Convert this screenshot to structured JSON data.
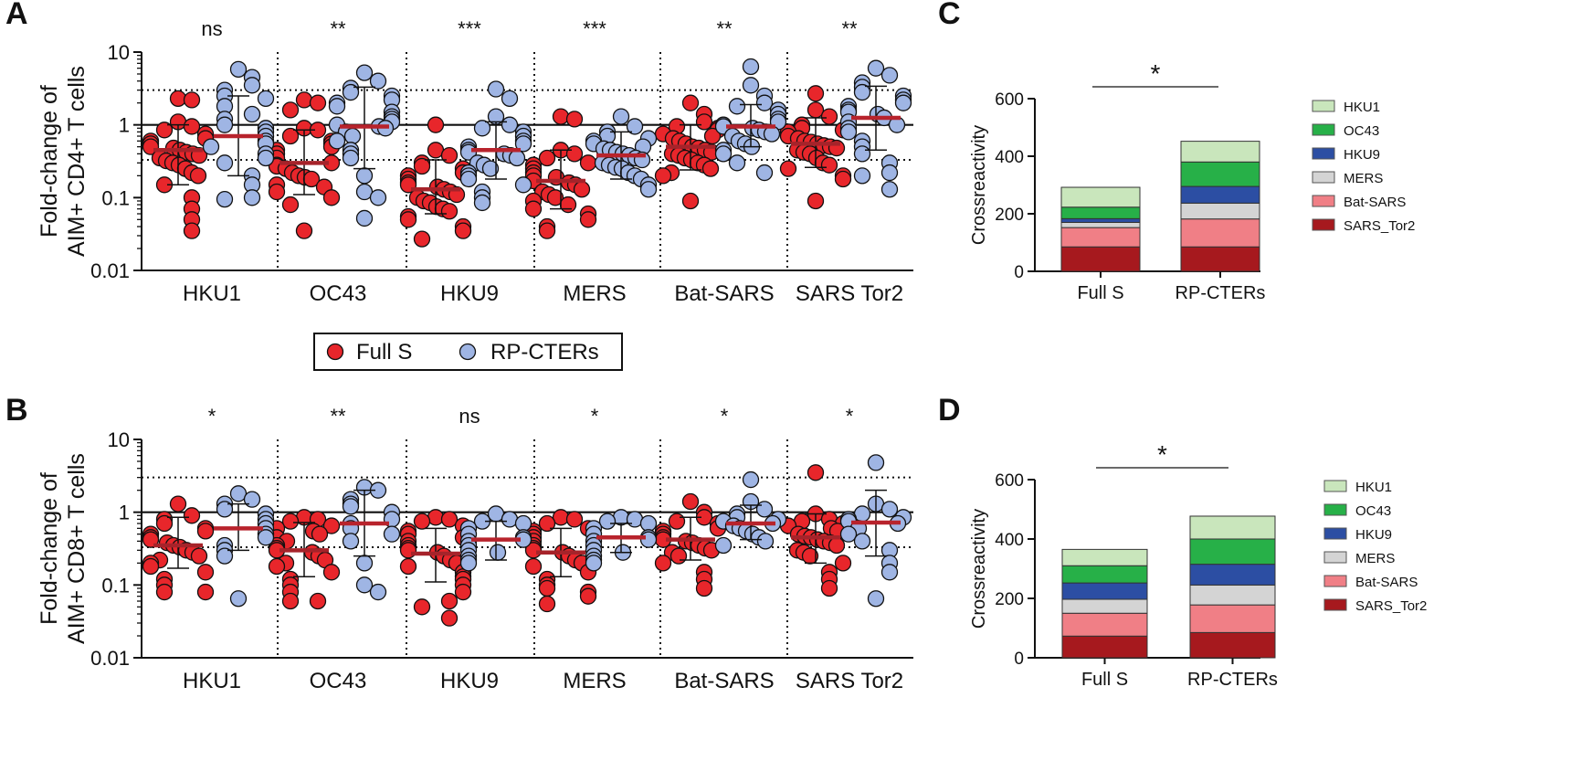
{
  "colors": {
    "full_s": "#e8262b",
    "rp_cters": "#9fb5e4",
    "median_full": "#a6232a",
    "median_rp": "#b8232c",
    "HKU1": "#c9e6bc",
    "OC43": "#27b048",
    "HKU9": "#2c4ea3",
    "MERS": "#d4d4d4",
    "Bat-SARS": "#f07f86",
    "SARS_Tor2": "#a6191e"
  },
  "legend": {
    "full_s": "Full S",
    "rp_cters": "RP-CTERs"
  },
  "chart_data": [
    {
      "panel": "A",
      "type": "scatter",
      "yscale": "log",
      "ylabel_line1": "Fold-change of",
      "ylabel_line2": "AIM+ CD4+ T cells",
      "ylim": [
        0.01,
        10
      ],
      "yticks": [
        "0.01",
        "0.1",
        "1",
        "10"
      ],
      "reference_lines": [
        0.33,
        1,
        3
      ],
      "categories": [
        "HKU1",
        "OC43",
        "HKU9",
        "MERS",
        "Bat-SARS",
        "SARS Tor2"
      ],
      "significance": [
        "ns",
        "**",
        "***",
        "***",
        "**",
        "**"
      ],
      "series": [
        {
          "name": "Full S",
          "medians": [
            0.45,
            0.3,
            0.13,
            0.17,
            0.5,
            0.55
          ],
          "sd_low": [
            0.15,
            0.11,
            0.06,
            0.07,
            0.24,
            0.26
          ],
          "sd_high": [
            1.0,
            0.85,
            0.33,
            0.45,
            1.0,
            1.25
          ],
          "values": [
            [
              2.3,
              2.2,
              1.1,
              0.95,
              0.85,
              0.75,
              0.65,
              0.6,
              0.55,
              0.5,
              0.48,
              0.45,
              0.42,
              0.4,
              0.38,
              0.35,
              0.32,
              0.3,
              0.28,
              0.25,
              0.22,
              0.2,
              0.15,
              0.1,
              0.07,
              0.05,
              0.035
            ],
            [
              2.2,
              2.0,
              1.6,
              0.9,
              0.85,
              0.7,
              0.6,
              0.55,
              0.5,
              0.45,
              0.4,
              0.35,
              0.3,
              0.28,
              0.27,
              0.25,
              0.22,
              0.2,
              0.19,
              0.18,
              0.15,
              0.14,
              0.12,
              0.1,
              0.08,
              0.035
            ],
            [
              1.0,
              0.45,
              0.38,
              0.3,
              0.27,
              0.25,
              0.22,
              0.2,
              0.18,
              0.16,
              0.15,
              0.14,
              0.13,
              0.12,
              0.11,
              0.1,
              0.09,
              0.085,
              0.075,
              0.07,
              0.065,
              0.055,
              0.05,
              0.04,
              0.035,
              0.027
            ],
            [
              1.3,
              1.2,
              0.45,
              0.4,
              0.35,
              0.3,
              0.28,
              0.25,
              0.22,
              0.2,
              0.19,
              0.17,
              0.16,
              0.15,
              0.13,
              0.12,
              0.11,
              0.1,
              0.09,
              0.08,
              0.07,
              0.06,
              0.05,
              0.04,
              0.035
            ],
            [
              2.0,
              1.4,
              1.1,
              0.95,
              0.9,
              0.85,
              0.75,
              0.7,
              0.65,
              0.6,
              0.55,
              0.5,
              0.48,
              0.45,
              0.42,
              0.4,
              0.38,
              0.35,
              0.33,
              0.3,
              0.28,
              0.25,
              0.22,
              0.2,
              0.09
            ],
            [
              2.7,
              1.6,
              1.3,
              1.0,
              0.9,
              0.85,
              0.8,
              0.7,
              0.65,
              0.6,
              0.58,
              0.55,
              0.52,
              0.5,
              0.48,
              0.45,
              0.42,
              0.4,
              0.35,
              0.3,
              0.28,
              0.25,
              0.2,
              0.18,
              0.09
            ]
          ]
        },
        {
          "name": "RP-CTERs",
          "medians": [
            0.7,
            0.95,
            0.45,
            0.38,
            0.95,
            1.25
          ],
          "sd_low": [
            0.2,
            0.25,
            0.18,
            0.18,
            0.5,
            0.45
          ],
          "sd_high": [
            2.5,
            3.3,
            1.1,
            0.8,
            1.9,
            3.4
          ],
          "values": [
            [
              5.8,
              4.5,
              3.5,
              3.0,
              2.5,
              2.3,
              1.8,
              1.4,
              1.2,
              1.0,
              0.9,
              0.8,
              0.7,
              0.6,
              0.55,
              0.5,
              0.4,
              0.35,
              0.3,
              0.2,
              0.15,
              0.1,
              0.095
            ],
            [
              5.2,
              4.0,
              3.2,
              2.8,
              2.5,
              2.2,
              2.0,
              1.8,
              1.5,
              1.3,
              1.2,
              1.1,
              1.0,
              0.95,
              0.9,
              0.8,
              0.7,
              0.6,
              0.45,
              0.4,
              0.35,
              0.2,
              0.12,
              0.1,
              0.052
            ],
            [
              3.1,
              2.3,
              1.3,
              1.0,
              0.9,
              0.8,
              0.7,
              0.6,
              0.55,
              0.5,
              0.45,
              0.42,
              0.4,
              0.38,
              0.35,
              0.3,
              0.28,
              0.25,
              0.22,
              0.2,
              0.18,
              0.15,
              0.12,
              0.1,
              0.085
            ],
            [
              1.3,
              0.95,
              0.8,
              0.7,
              0.65,
              0.6,
              0.55,
              0.5,
              0.47,
              0.45,
              0.42,
              0.4,
              0.38,
              0.35,
              0.33,
              0.3,
              0.28,
              0.26,
              0.25,
              0.22,
              0.2,
              0.18,
              0.15,
              0.13
            ],
            [
              6.3,
              3.5,
              2.5,
              2.0,
              1.8,
              1.6,
              1.4,
              1.2,
              1.1,
              1.0,
              0.95,
              0.9,
              0.85,
              0.8,
              0.75,
              0.7,
              0.6,
              0.55,
              0.5,
              0.45,
              0.4,
              0.3,
              0.22
            ],
            [
              6.0,
              4.8,
              3.8,
              3.3,
              2.8,
              2.5,
              2.2,
              2.0,
              1.8,
              1.6,
              1.5,
              1.4,
              1.25,
              1.1,
              1.0,
              0.9,
              0.8,
              0.6,
              0.5,
              0.4,
              0.3,
              0.22,
              0.2,
              0.13
            ]
          ]
        }
      ]
    },
    {
      "panel": "B",
      "type": "scatter",
      "yscale": "log",
      "ylabel_line1": "Fold-change of",
      "ylabel_line2": "AIM+ CD8+ T cells",
      "ylim": [
        0.01,
        10
      ],
      "yticks": [
        "0.01",
        "0.1",
        "1",
        "10"
      ],
      "reference_lines": [
        0.33,
        1,
        3
      ],
      "categories": [
        "HKU1",
        "OC43",
        "HKU9",
        "MERS",
        "Bat-SARS",
        "SARS Tor2"
      ],
      "significance": [
        "*",
        "**",
        "ns",
        "*",
        "*",
        "*"
      ],
      "series": [
        {
          "name": "Full S",
          "medians": [
            0.35,
            0.3,
            0.27,
            0.28,
            0.42,
            0.45
          ],
          "sd_low": [
            0.17,
            0.13,
            0.11,
            0.13,
            0.22,
            0.2
          ],
          "sd_high": [
            0.85,
            0.72,
            0.6,
            0.6,
            0.85,
            0.95
          ],
          "values": [
            [
              1.3,
              0.9,
              0.8,
              0.7,
              0.6,
              0.55,
              0.5,
              0.45,
              0.42,
              0.38,
              0.35,
              0.33,
              0.3,
              0.28,
              0.25,
              0.22,
              0.2,
              0.18,
              0.15,
              0.12,
              0.1,
              0.08,
              0.08
            ],
            [
              0.85,
              0.8,
              0.75,
              0.65,
              0.6,
              0.55,
              0.5,
              0.45,
              0.4,
              0.35,
              0.32,
              0.3,
              0.28,
              0.25,
              0.22,
              0.2,
              0.18,
              0.15,
              0.12,
              0.1,
              0.08,
              0.06,
              0.06
            ],
            [
              0.85,
              0.8,
              0.75,
              0.65,
              0.55,
              0.5,
              0.45,
              0.4,
              0.35,
              0.32,
              0.3,
              0.28,
              0.25,
              0.22,
              0.2,
              0.18,
              0.15,
              0.13,
              0.12,
              0.1,
              0.08,
              0.06,
              0.05,
              0.035
            ],
            [
              0.85,
              0.8,
              0.7,
              0.6,
              0.55,
              0.5,
              0.45,
              0.4,
              0.35,
              0.32,
              0.3,
              0.28,
              0.25,
              0.22,
              0.2,
              0.18,
              0.15,
              0.12,
              0.1,
              0.09,
              0.08,
              0.07,
              0.055
            ],
            [
              1.4,
              1.0,
              0.85,
              0.75,
              0.7,
              0.6,
              0.55,
              0.5,
              0.45,
              0.42,
              0.4,
              0.38,
              0.35,
              0.32,
              0.3,
              0.28,
              0.25,
              0.2,
              0.15,
              0.12,
              0.09
            ],
            [
              3.5,
              0.95,
              0.8,
              0.75,
              0.7,
              0.65,
              0.6,
              0.55,
              0.5,
              0.47,
              0.45,
              0.42,
              0.4,
              0.38,
              0.35,
              0.3,
              0.28,
              0.25,
              0.2,
              0.15,
              0.12,
              0.09
            ]
          ]
        },
        {
          "name": "RP-CTERs",
          "medians": [
            0.6,
            0.7,
            0.42,
            0.45,
            0.7,
            0.72
          ],
          "sd_low": [
            0.3,
            0.25,
            0.22,
            0.28,
            0.42,
            0.25
          ],
          "sd_high": [
            1.3,
            2.0,
            0.75,
            0.7,
            1.25,
            2.0
          ],
          "values": [
            [
              1.8,
              1.5,
              1.3,
              1.1,
              0.95,
              0.8,
              0.7,
              0.6,
              0.5,
              0.45,
              0.35,
              0.3,
              0.25,
              0.065
            ],
            [
              2.2,
              2.0,
              1.5,
              1.3,
              1.2,
              1.0,
              0.8,
              0.7,
              0.6,
              0.5,
              0.4,
              0.2,
              0.1,
              0.08
            ],
            [
              0.95,
              0.8,
              0.75,
              0.7,
              0.6,
              0.5,
              0.45,
              0.42,
              0.4,
              0.35,
              0.3,
              0.28,
              0.25,
              0.22,
              0.2
            ],
            [
              0.85,
              0.8,
              0.75,
              0.7,
              0.6,
              0.5,
              0.45,
              0.42,
              0.4,
              0.35,
              0.3,
              0.28,
              0.25,
              0.22,
              0.2
            ],
            [
              2.8,
              1.4,
              1.1,
              0.95,
              0.85,
              0.8,
              0.75,
              0.7,
              0.65,
              0.6,
              0.55,
              0.5,
              0.45,
              0.4,
              0.35
            ],
            [
              4.8,
              1.3,
              1.1,
              0.95,
              0.85,
              0.8,
              0.75,
              0.7,
              0.6,
              0.5,
              0.4,
              0.3,
              0.2,
              0.15,
              0.065
            ]
          ]
        }
      ]
    },
    {
      "panel": "C",
      "type": "bar",
      "stacked": true,
      "ylabel": "Crossreactivity",
      "ylim": [
        0,
        600
      ],
      "yticks": [
        "0",
        "200",
        "400",
        "600"
      ],
      "categories": [
        "Full S",
        "RP-CTERs"
      ],
      "significance": "*",
      "stack_order": [
        "SARS_Tor2",
        "Bat-SARS",
        "MERS",
        "HKU9",
        "OC43",
        "HKU1"
      ],
      "legend_order": [
        "HKU1",
        "OC43",
        "HKU9",
        "MERS",
        "Bat-SARS",
        "SARS_Tor2"
      ],
      "series": [
        {
          "name": "SARS_Tor2",
          "values": [
            85,
            85
          ]
        },
        {
          "name": "Bat-SARS",
          "values": [
            67,
            97
          ]
        },
        {
          "name": "MERS",
          "values": [
            18,
            55
          ]
        },
        {
          "name": "HKU9",
          "values": [
            13,
            58
          ]
        },
        {
          "name": "OC43",
          "values": [
            40,
            85
          ]
        },
        {
          "name": "HKU1",
          "values": [
            69,
            72
          ]
        }
      ]
    },
    {
      "panel": "D",
      "type": "bar",
      "stacked": true,
      "ylabel": "Crossreactivity",
      "ylim": [
        0,
        600
      ],
      "yticks": [
        "0",
        "200",
        "400",
        "600"
      ],
      "categories": [
        "Full S",
        "RP-CTERs"
      ],
      "significance": "*",
      "stack_order": [
        "SARS_Tor2",
        "Bat-SARS",
        "MERS",
        "HKU9",
        "OC43",
        "HKU1"
      ],
      "legend_order": [
        "HKU1",
        "OC43",
        "HKU9",
        "MERS",
        "Bat-SARS",
        "SARS_Tor2"
      ],
      "series": [
        {
          "name": "SARS_Tor2",
          "values": [
            73,
            85
          ]
        },
        {
          "name": "Bat-SARS",
          "values": [
            77,
            93
          ]
        },
        {
          "name": "MERS",
          "values": [
            47,
            67
          ]
        },
        {
          "name": "HKU9",
          "values": [
            55,
            70
          ]
        },
        {
          "name": "OC43",
          "values": [
            58,
            85
          ]
        },
        {
          "name": "HKU1",
          "values": [
            55,
            77
          ]
        }
      ]
    }
  ]
}
